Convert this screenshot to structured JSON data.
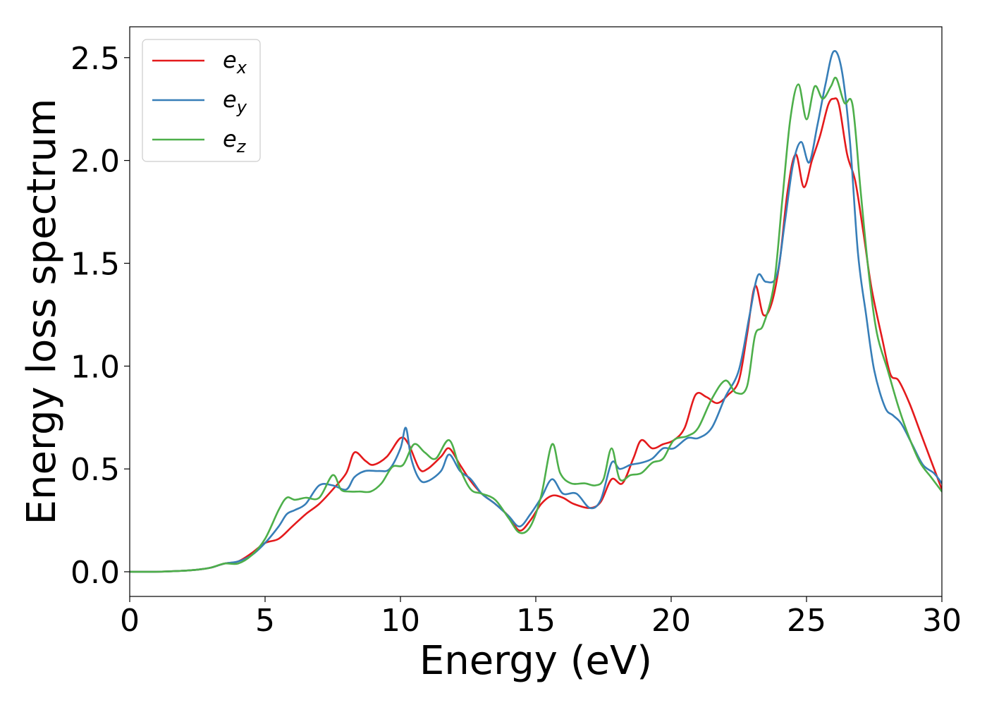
{
  "chart_data": {
    "type": "line",
    "title": "",
    "xlabel": "Energy (eV)",
    "ylabel": "Energy loss spectrum",
    "xlim": [
      0,
      30
    ],
    "ylim": [
      -0.12,
      2.65
    ],
    "xticks": [
      0,
      5,
      10,
      15,
      20,
      25,
      30
    ],
    "xtick_labels": [
      "0",
      "5",
      "10",
      "15",
      "20",
      "25",
      "30"
    ],
    "yticks": [
      0.0,
      0.5,
      1.0,
      1.5,
      2.0,
      2.5
    ],
    "ytick_labels": [
      "0.0",
      "0.5",
      "1.0",
      "1.5",
      "2.0",
      "2.5"
    ],
    "grid": false,
    "legend_position": "top-left",
    "series": [
      {
        "name": "e_x",
        "legend_base": "e",
        "legend_sub": "x",
        "color": "#e41a1c",
        "x": [
          0,
          1,
          2,
          2.5,
          3,
          3.5,
          4,
          4.5,
          5,
          5.5,
          6,
          6.5,
          7,
          7.5,
          8,
          8.3,
          8.7,
          9,
          9.5,
          10,
          10.3,
          10.7,
          11,
          11.5,
          11.8,
          12.2,
          12.6,
          13,
          13.5,
          14,
          14.4,
          14.8,
          15.2,
          15.6,
          16,
          16.4,
          17,
          17.4,
          17.8,
          18.2,
          18.6,
          18.9,
          19.3,
          19.7,
          20.1,
          20.5,
          20.9,
          21.3,
          21.7,
          22.1,
          22.5,
          22.8,
          23.1,
          23.4,
          23.7,
          24,
          24.3,
          24.6,
          24.9,
          25.2,
          25.5,
          25.8,
          26,
          26.2,
          26.5,
          26.8,
          27.1,
          27.4,
          27.8,
          28.1,
          28.4,
          28.8,
          29.2,
          29.6,
          30
        ],
        "y": [
          0.0,
          0.0,
          0.005,
          0.01,
          0.02,
          0.04,
          0.05,
          0.09,
          0.14,
          0.16,
          0.22,
          0.28,
          0.33,
          0.4,
          0.48,
          0.58,
          0.54,
          0.52,
          0.56,
          0.65,
          0.62,
          0.5,
          0.5,
          0.56,
          0.6,
          0.52,
          0.44,
          0.38,
          0.33,
          0.27,
          0.2,
          0.25,
          0.33,
          0.37,
          0.36,
          0.33,
          0.31,
          0.34,
          0.45,
          0.43,
          0.55,
          0.64,
          0.6,
          0.62,
          0.64,
          0.7,
          0.86,
          0.85,
          0.82,
          0.86,
          0.93,
          1.15,
          1.39,
          1.25,
          1.3,
          1.5,
          1.85,
          2.03,
          1.87,
          2.0,
          2.12,
          2.27,
          2.3,
          2.27,
          2.03,
          1.9,
          1.65,
          1.38,
          1.13,
          0.96,
          0.93,
          0.82,
          0.68,
          0.54,
          0.4
        ]
      },
      {
        "name": "e_y",
        "legend_base": "e",
        "legend_sub": "y",
        "color": "#377eb8",
        "x": [
          0,
          1,
          2,
          2.5,
          3,
          3.5,
          4,
          4.5,
          5,
          5.5,
          5.8,
          6.1,
          6.5,
          7,
          7.5,
          8,
          8.3,
          8.7,
          9.2,
          9.6,
          10,
          10.2,
          10.4,
          10.7,
          11,
          11.5,
          11.8,
          12.2,
          12.6,
          13,
          13.5,
          14,
          14.4,
          14.8,
          15.2,
          15.6,
          16,
          16.5,
          17,
          17.4,
          17.8,
          18.1,
          18.5,
          18.9,
          19.3,
          19.7,
          20.1,
          20.6,
          21,
          21.5,
          22,
          22.5,
          22.9,
          23.2,
          23.5,
          23.9,
          24.2,
          24.5,
          24.8,
          25.1,
          25.4,
          25.7,
          26,
          26.3,
          26.6,
          26.9,
          27.2,
          27.5,
          27.9,
          28.2,
          28.5,
          28.9,
          29.3,
          29.7,
          30
        ],
        "y": [
          0.0,
          0.0,
          0.005,
          0.01,
          0.02,
          0.04,
          0.05,
          0.08,
          0.14,
          0.22,
          0.28,
          0.3,
          0.33,
          0.42,
          0.42,
          0.4,
          0.46,
          0.49,
          0.49,
          0.5,
          0.6,
          0.7,
          0.55,
          0.45,
          0.44,
          0.49,
          0.57,
          0.49,
          0.45,
          0.38,
          0.33,
          0.27,
          0.22,
          0.28,
          0.36,
          0.45,
          0.38,
          0.38,
          0.31,
          0.35,
          0.53,
          0.5,
          0.52,
          0.53,
          0.55,
          0.6,
          0.6,
          0.65,
          0.65,
          0.7,
          0.85,
          0.98,
          1.25,
          1.44,
          1.41,
          1.44,
          1.7,
          1.98,
          2.09,
          1.99,
          2.17,
          2.37,
          2.53,
          2.44,
          2.1,
          1.55,
          1.25,
          0.98,
          0.8,
          0.76,
          0.72,
          0.62,
          0.52,
          0.48,
          0.43
        ]
      },
      {
        "name": "e_z",
        "legend_base": "e",
        "legend_sub": "z",
        "color": "#4daf4a",
        "x": [
          0,
          1,
          2,
          2.5,
          3,
          3.5,
          4,
          4.5,
          5,
          5.5,
          5.8,
          6.1,
          6.5,
          7,
          7.5,
          7.8,
          8.1,
          8.5,
          8.9,
          9.3,
          9.7,
          10.1,
          10.5,
          10.9,
          11.3,
          11.8,
          12.2,
          12.6,
          13,
          13.5,
          14,
          14.4,
          14.8,
          15.2,
          15.6,
          15.9,
          16.3,
          16.8,
          17.2,
          17.5,
          17.8,
          18.1,
          18.5,
          18.9,
          19.3,
          19.7,
          20.1,
          20.6,
          21,
          21.5,
          22,
          22.4,
          22.8,
          23.1,
          23.4,
          23.8,
          24.1,
          24.4,
          24.7,
          25,
          25.3,
          25.6,
          25.9,
          26.1,
          26.4,
          26.7,
          27,
          27.3,
          27.6,
          28,
          28.4,
          28.8,
          29.2,
          29.6,
          30
        ],
        "y": [
          0.0,
          0.0,
          0.005,
          0.01,
          0.02,
          0.04,
          0.04,
          0.08,
          0.16,
          0.3,
          0.36,
          0.35,
          0.36,
          0.36,
          0.47,
          0.4,
          0.39,
          0.39,
          0.39,
          0.43,
          0.51,
          0.52,
          0.62,
          0.58,
          0.55,
          0.64,
          0.5,
          0.4,
          0.38,
          0.35,
          0.26,
          0.19,
          0.22,
          0.37,
          0.62,
          0.48,
          0.43,
          0.43,
          0.42,
          0.45,
          0.6,
          0.45,
          0.47,
          0.48,
          0.53,
          0.55,
          0.64,
          0.66,
          0.7,
          0.84,
          0.93,
          0.87,
          0.9,
          1.15,
          1.2,
          1.4,
          1.8,
          2.2,
          2.37,
          2.2,
          2.36,
          2.3,
          2.36,
          2.4,
          2.28,
          2.27,
          1.85,
          1.45,
          1.16,
          0.98,
          0.8,
          0.65,
          0.53,
          0.46,
          0.39
        ]
      }
    ]
  }
}
